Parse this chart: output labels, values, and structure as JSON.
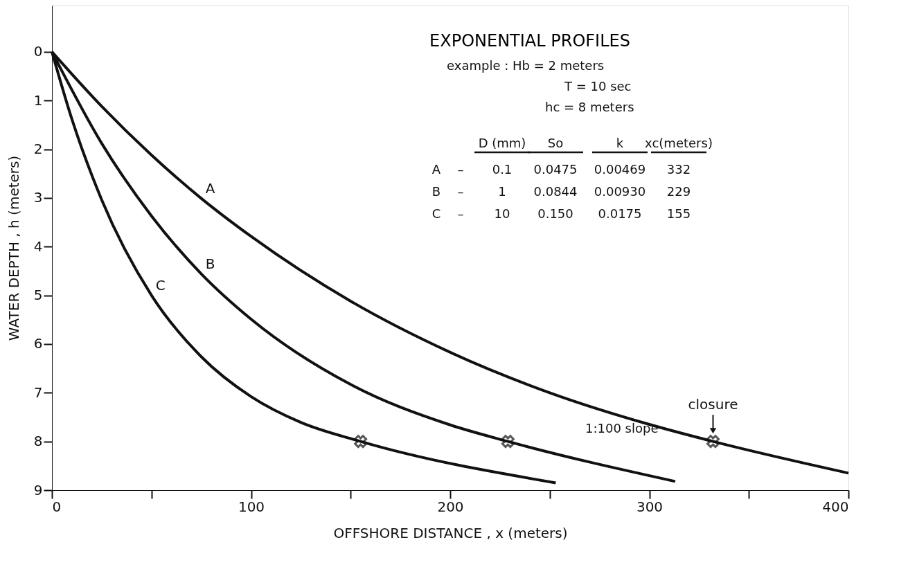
{
  "chart_data": {
    "type": "line",
    "title": "EXPONENTIAL PROFILES",
    "xlabel": "OFFSHORE DISTANCE , x (meters)",
    "ylabel": "WATER DEPTH , h (meters)",
    "xlim": [
      0,
      400
    ],
    "xticks": [
      0,
      {
        "value": 50,
        "label": null
      },
      100,
      {
        "value": 150,
        "label": null
      },
      200,
      {
        "value": 250,
        "label": null
      },
      300,
      {
        "value": 350,
        "label": null
      },
      400
    ],
    "ylim": [
      9,
      -0.95
    ],
    "yticks": [
      0,
      1,
      2,
      3,
      4,
      5,
      6,
      7,
      8,
      9
    ],
    "grid": false,
    "line_style": "solid",
    "series": [
      {
        "name": "A",
        "color": "#111111",
        "x": [
          0,
          25,
          50,
          75,
          100,
          150,
          200,
          250,
          300,
          332,
          400
        ],
        "values": [
          0,
          1.12,
          2.12,
          3.01,
          3.79,
          5.12,
          6.17,
          7.0,
          7.65,
          8.0,
          8.65
        ]
      },
      {
        "name": "B",
        "color": "#111111",
        "x": [
          0,
          25,
          50,
          75,
          100,
          150,
          200,
          229,
          313
        ],
        "values": [
          0,
          1.88,
          3.37,
          4.56,
          5.49,
          6.83,
          7.66,
          8.0,
          8.82
        ]
      },
      {
        "name": "C",
        "color": "#111111",
        "x": [
          0,
          10,
          25,
          50,
          75,
          100,
          125,
          155,
          253
        ],
        "values": [
          0,
          1.38,
          3.04,
          5.0,
          6.26,
          7.08,
          7.61,
          8.0,
          8.85
        ]
      },
      {
        "type": "scatter",
        "marker": "cross",
        "color": "#111111",
        "x": [
          155,
          229,
          332
        ],
        "values": [
          8,
          8,
          8
        ]
      }
    ],
    "annotations": [
      "example : Hb = 2 meters",
      "T = 10 sec",
      "hc = 8 meters",
      "D (mm)",
      "So",
      "k",
      "xc(meters)",
      "A",
      "–",
      "0.1",
      "0.0475",
      "0.00469",
      "332",
      "B",
      "–",
      "1",
      "0.0844",
      "0.00930",
      "229",
      "C",
      "–",
      "10",
      "0.150",
      "0.0175",
      "155",
      "1:100 slope",
      {
        "text": "closure",
        "x": 332,
        "y": 8
      }
    ]
  }
}
